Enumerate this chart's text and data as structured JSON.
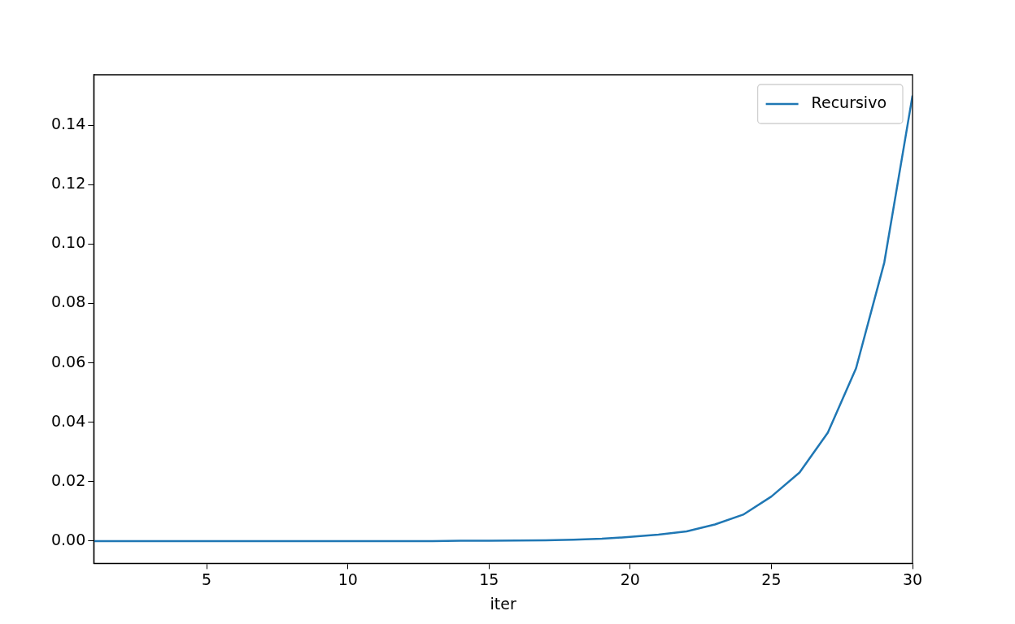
{
  "chart_data": {
    "type": "line",
    "xlabel": "iter",
    "x": [
      1,
      2,
      3,
      4,
      5,
      6,
      7,
      8,
      9,
      10,
      11,
      12,
      13,
      14,
      15,
      16,
      17,
      18,
      19,
      20,
      21,
      22,
      23,
      24,
      25,
      26,
      27,
      28,
      29,
      30
    ],
    "series": [
      {
        "name": "Recursivo",
        "color": "#1f77b4",
        "values": [
          0,
          0,
          0,
          0,
          0,
          0,
          0,
          0,
          0,
          0,
          0,
          0,
          0,
          0.0001,
          0.0001,
          0.0002,
          0.0003,
          0.0005,
          0.0008,
          0.0014,
          0.0022,
          0.0033,
          0.0056,
          0.0089,
          0.015,
          0.0231,
          0.0365,
          0.0582,
          0.0938,
          0.15
        ]
      }
    ],
    "xlim": [
      1,
      30
    ],
    "xticks": [
      5,
      10,
      15,
      20,
      25,
      30
    ],
    "ylim": [
      -0.0075,
      0.157
    ],
    "yticks": [
      {
        "value": 0,
        "label": "0.00"
      },
      {
        "value": 0.02,
        "label": "0.02"
      },
      {
        "value": 0.04,
        "label": "0.04"
      },
      {
        "value": 0.06,
        "label": "0.06"
      },
      {
        "value": 0.08,
        "label": "0.08"
      },
      {
        "value": 0.1,
        "label": "0.10"
      },
      {
        "value": 0.12,
        "label": "0.12"
      },
      {
        "value": 0.14,
        "label": "0.14"
      }
    ],
    "grid": false,
    "legend": "top right",
    "marker": "none",
    "line_style": "solid"
  }
}
